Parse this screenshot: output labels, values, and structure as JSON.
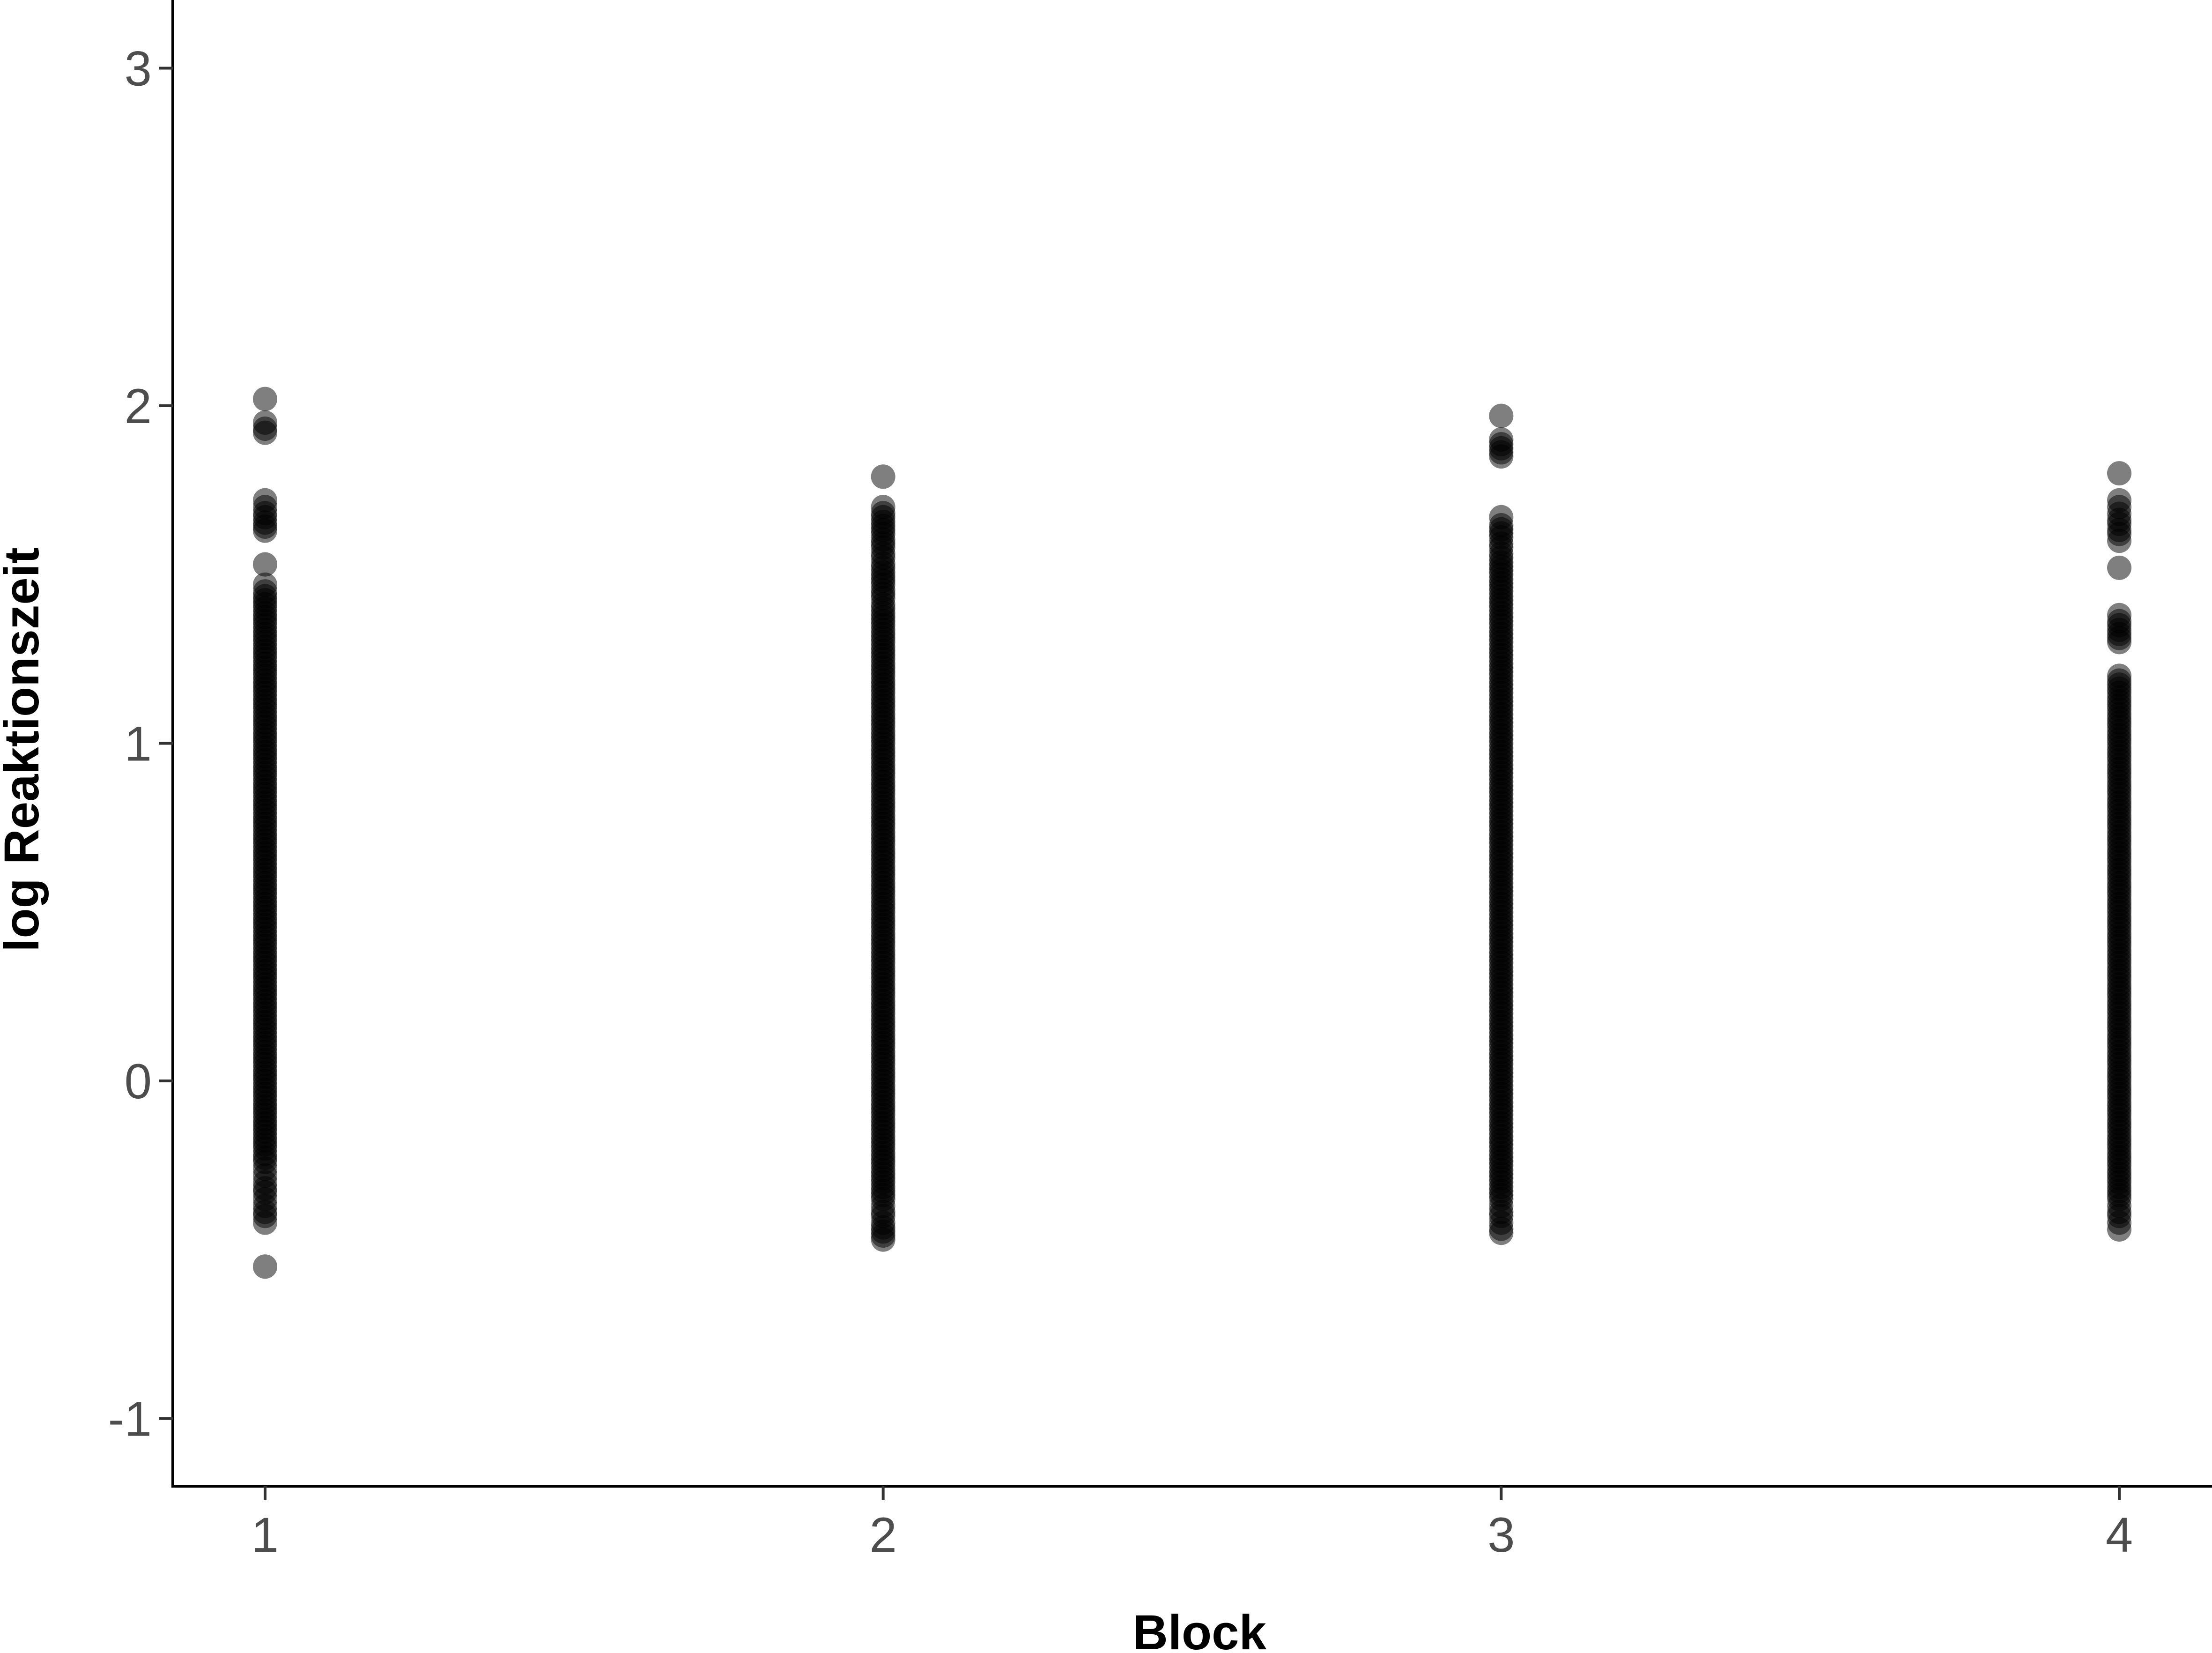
{
  "chart_data": {
    "type": "scatter",
    "title": "",
    "xlabel": "Block",
    "ylabel": "log Reaktionszeit",
    "categories": [
      "1",
      "2",
      "3",
      "4"
    ],
    "ylim": [
      -1.2,
      3.2
    ],
    "y_ticks": [
      "-1",
      "0",
      "1",
      "2",
      "3"
    ],
    "grid": false,
    "legend": "none",
    "point_color": "#000000",
    "point_alpha": 0.5,
    "series": [
      {
        "x": 1,
        "values": [
          -0.55,
          -0.42,
          -0.4,
          -0.37,
          -0.35,
          -0.33,
          -0.3,
          -0.28,
          -0.26,
          -0.24,
          -0.2,
          -0.15,
          -0.1,
          -0.05,
          0.0,
          0.05,
          0.1,
          0.15,
          0.2,
          0.25,
          0.3,
          0.35,
          0.4,
          0.45,
          0.5,
          0.55,
          0.6,
          0.65,
          0.7,
          0.75,
          0.8,
          0.85,
          0.9,
          0.95,
          1.0,
          1.05,
          1.1,
          1.15,
          1.2,
          1.25,
          1.3,
          1.35,
          1.4,
          1.45,
          1.47,
          1.53,
          1.63,
          1.67,
          1.7,
          1.72,
          1.92,
          1.95,
          2.02
        ]
      },
      {
        "x": 2,
        "values": [
          -0.47,
          -0.42,
          -0.4,
          -0.37,
          -0.35,
          -0.3,
          -0.25,
          -0.2,
          -0.15,
          -0.1,
          -0.05,
          0.0,
          0.05,
          0.1,
          0.15,
          0.2,
          0.25,
          0.3,
          0.35,
          0.4,
          0.45,
          0.5,
          0.55,
          0.6,
          0.65,
          0.7,
          0.75,
          0.8,
          0.85,
          0.9,
          0.95,
          1.0,
          1.05,
          1.1,
          1.15,
          1.2,
          1.25,
          1.3,
          1.35,
          1.4,
          1.43,
          1.47,
          1.52,
          1.55,
          1.58,
          1.62,
          1.67,
          1.7,
          1.79
        ]
      },
      {
        "x": 3,
        "values": [
          -0.45,
          -0.42,
          -0.4,
          -0.37,
          -0.35,
          -0.3,
          -0.25,
          -0.2,
          -0.15,
          -0.1,
          -0.05,
          0.0,
          0.05,
          0.1,
          0.15,
          0.2,
          0.25,
          0.3,
          0.35,
          0.4,
          0.45,
          0.5,
          0.55,
          0.6,
          0.65,
          0.7,
          0.75,
          0.8,
          0.85,
          0.9,
          0.95,
          1.0,
          1.05,
          1.1,
          1.15,
          1.2,
          1.25,
          1.3,
          1.35,
          1.4,
          1.45,
          1.5,
          1.55,
          1.58,
          1.61,
          1.67,
          1.85,
          1.9,
          1.97
        ]
      },
      {
        "x": 4,
        "values": [
          -0.44,
          -0.42,
          -0.4,
          -0.37,
          -0.35,
          -0.3,
          -0.25,
          -0.2,
          -0.15,
          -0.1,
          -0.05,
          0.0,
          0.05,
          0.1,
          0.15,
          0.2,
          0.25,
          0.3,
          0.35,
          0.4,
          0.45,
          0.5,
          0.55,
          0.6,
          0.65,
          0.7,
          0.75,
          0.8,
          0.85,
          0.9,
          0.95,
          1.0,
          1.05,
          1.1,
          1.15,
          1.2,
          1.3,
          1.35,
          1.38,
          1.52,
          1.6,
          1.62,
          1.65,
          1.68,
          1.7,
          1.72,
          1.8
        ]
      }
    ]
  }
}
